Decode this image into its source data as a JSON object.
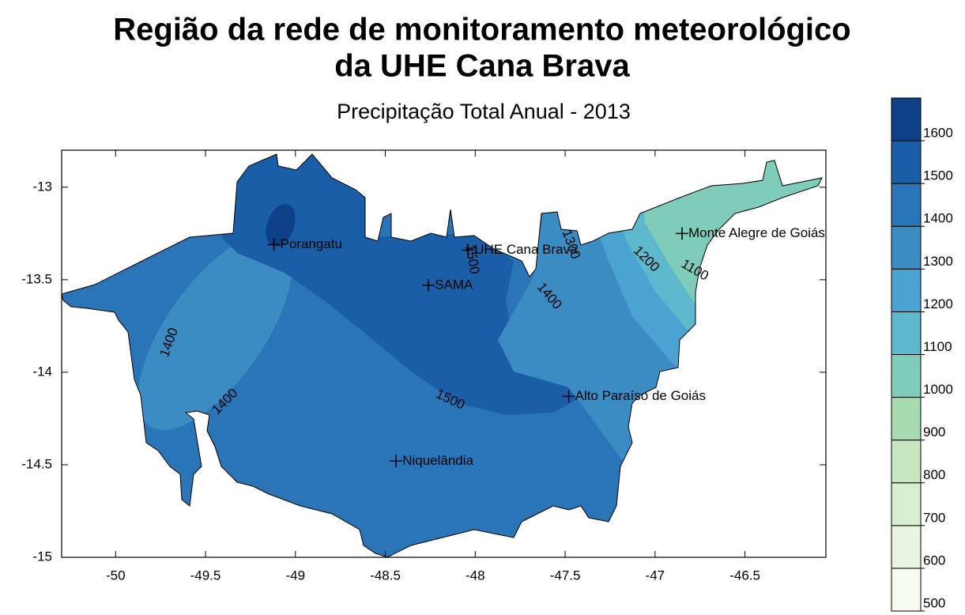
{
  "title": "Região da rede de monitoramento meteorológico",
  "title_line2": "da UHE Cana Brava",
  "subtitle": "Precipitação Total Anual - 2013",
  "map": {
    "xlim": [
      -50.3,
      -46.05
    ],
    "ylim": [
      -15,
      -12.8
    ],
    "xticks": [
      -50,
      -49.5,
      -49,
      -48.5,
      -48,
      -47.5,
      -47,
      -46.5
    ],
    "yticks": [
      -13,
      -13.5,
      -14,
      -14.5,
      -15
    ]
  },
  "stations": [
    {
      "name": "Porangatu",
      "lon": -49.12,
      "lat": -13.31
    },
    {
      "name": "UHE Cana Brava",
      "lon": -48.04,
      "lat": -13.34
    },
    {
      "name": "SAMA",
      "lon": -48.26,
      "lat": -13.53
    },
    {
      "name": "Monte Alegre de Goiás",
      "lon": -46.85,
      "lat": -13.25
    },
    {
      "name": "Alto Paraíso de Goiás",
      "lon": -47.48,
      "lat": -14.13
    },
    {
      "name": "Niquelândia",
      "lon": -48.44,
      "lat": -14.48
    }
  ],
  "contour_labels": [
    {
      "value": 1400,
      "lon": -49.7,
      "lat": -13.84
    },
    {
      "value": 1400,
      "lon": -49.39,
      "lat": -14.16
    },
    {
      "value": 1500,
      "lon": -48.14,
      "lat": -14.15
    },
    {
      "value": 1500,
      "lon": -48.02,
      "lat": -13.39
    },
    {
      "value": 1300,
      "lon": -47.47,
      "lat": -13.31
    },
    {
      "value": 1400,
      "lon": -47.59,
      "lat": -13.59
    },
    {
      "value": 1200,
      "lon": -47.05,
      "lat": -13.39
    },
    {
      "value": 1100,
      "lon": -46.78,
      "lat": -13.45
    }
  ],
  "colorbar": {
    "lim": [
      500,
      1700
    ],
    "ticks": [
      500,
      600,
      700,
      800,
      900,
      1000,
      1100,
      1200,
      1300,
      1400,
      1500,
      1600
    ],
    "colors": [
      "#f7fcf0",
      "#e8f5e0",
      "#d8eed0",
      "#c6e7c0",
      "#a8dbb0",
      "#7fccbb",
      "#5db8cb",
      "#4aa3d0",
      "#3a8cc3",
      "#2a74b8",
      "#1a5ea8",
      "#0d4088"
    ]
  }
}
